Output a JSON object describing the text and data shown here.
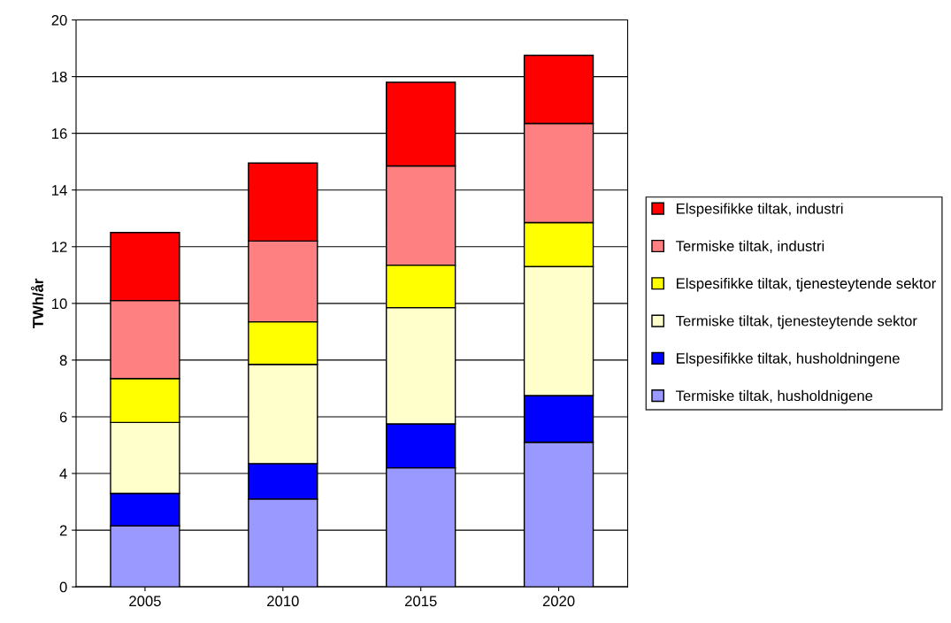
{
  "chart_data": {
    "type": "bar",
    "stacked": true,
    "ylabel": "TWh/år",
    "categories": [
      "2005",
      "2010",
      "2015",
      "2020"
    ],
    "series": [
      {
        "name": "Termiske tiltak, husholdnigene",
        "color": "#9999ff",
        "values": [
          2.15,
          3.1,
          4.2,
          5.1
        ]
      },
      {
        "name": "Elspesifikke tiltak, husholdningene",
        "color": "#0000ff",
        "values": [
          1.15,
          1.25,
          1.55,
          1.65
        ]
      },
      {
        "name": "Termiske tiltak, tjenesteytende sektor",
        "color": "#ffffcc",
        "values": [
          2.5,
          3.5,
          4.1,
          4.55
        ]
      },
      {
        "name": "Elspesifikke tiltak, tjenesteytende sektor",
        "color": "#ffff00",
        "values": [
          1.55,
          1.5,
          1.5,
          1.55
        ]
      },
      {
        "name": "Termiske tiltak, industri",
        "color": "#ff8080",
        "values": [
          2.75,
          2.85,
          3.5,
          3.5
        ]
      },
      {
        "name": "Elspesifikke tiltak, industri",
        "color": "#ff0000",
        "values": [
          2.4,
          2.75,
          2.95,
          2.4
        ]
      }
    ],
    "ylim": [
      0,
      20
    ],
    "yticks": [
      0,
      2,
      4,
      6,
      8,
      10,
      12,
      14,
      16,
      18,
      20
    ],
    "grid": "y",
    "legend": "right"
  }
}
